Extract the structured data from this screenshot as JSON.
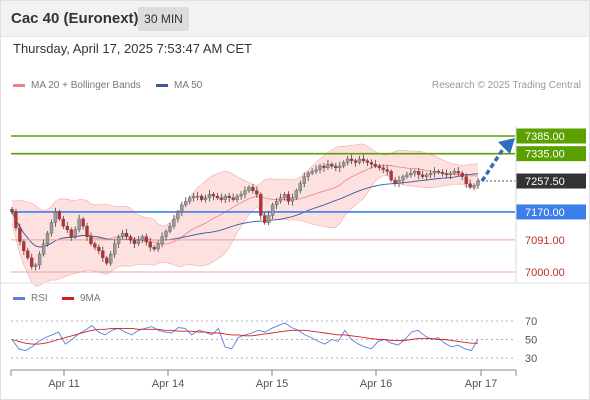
{
  "header": {
    "instrument": "Cac 40 (Euronext)",
    "interval": "30 MIN",
    "datetime": "Thursday, April 17, 2025 7:53:47 AM CET"
  },
  "legend": {
    "ma20_label": "MA 20 + Bollinger Bands",
    "ma50_label": "MA 50",
    "credit": "Research © 2025 Trading Central",
    "rsi_label": "RSI",
    "ma9_label": "9MA"
  },
  "colors": {
    "resistance_line": "#5aa000",
    "support_line": "#3d7eea",
    "pivot_line": "#f0a0a0",
    "current_price_label": "#333333",
    "ma20": "#f08080",
    "bollinger_fill": "#fde0e0",
    "ma50": "#3a5a9a",
    "candle_up": "#9a9a9a",
    "candle_down": "#c42b2b",
    "rsi": "#5b7fdb",
    "rsi_ma9": "#d02020",
    "arrow": "#2f6dbf"
  },
  "chart_data": [
    {
      "type": "candlestick",
      "title": "Cac 40 (Euronext)",
      "interval": "30 MIN",
      "ylim": [
        6980,
        7410
      ],
      "x_tick_labels": [
        "Apr 11",
        "Apr 14",
        "Apr 15",
        "Apr 16",
        "Apr 17"
      ],
      "series_close": [
        7170,
        7125,
        7086,
        7060,
        7040,
        7015,
        7020,
        7050,
        7080,
        7110,
        7140,
        7170,
        7150,
        7130,
        7120,
        7100,
        7120,
        7150,
        7130,
        7100,
        7080,
        7070,
        7060,
        7040,
        7025,
        7050,
        7080,
        7100,
        7110,
        7100,
        7090,
        7080,
        7090,
        7100,
        7085,
        7070,
        7065,
        7080,
        7100,
        7115,
        7130,
        7150,
        7170,
        7190,
        7200,
        7210,
        7215,
        7215,
        7205,
        7210,
        7220,
        7215,
        7210,
        7205,
        7215,
        7210,
        7205,
        7215,
        7220,
        7230,
        7240,
        7230,
        7220,
        7160,
        7140,
        7160,
        7190,
        7200,
        7210,
        7220,
        7200,
        7210,
        7230,
        7250,
        7270,
        7280,
        7285,
        7290,
        7300,
        7295,
        7305,
        7300,
        7295,
        7300,
        7310,
        7320,
        7315,
        7310,
        7320,
        7315,
        7310,
        7305,
        7300,
        7295,
        7290,
        7285,
        7260,
        7250,
        7260,
        7270,
        7275,
        7280,
        7285,
        7275,
        7270,
        7275,
        7280,
        7285,
        7282,
        7278,
        7275,
        7280,
        7285,
        7280,
        7270,
        7250,
        7240,
        7245,
        7257.5
      ],
      "levels": [
        {
          "label": "7385.00",
          "value": 7385,
          "kind": "resistance"
        },
        {
          "label": "7335.00",
          "value": 7335,
          "kind": "resistance"
        },
        {
          "label": "7257.50",
          "value": 7257.5,
          "kind": "current"
        },
        {
          "label": "7170.00",
          "value": 7170,
          "kind": "support"
        },
        {
          "label": "7091.00",
          "value": 7091,
          "kind": "pivot"
        },
        {
          "label": "7000.00",
          "value": 7000,
          "kind": "pivot"
        }
      ],
      "legend": [
        "MA 20 + Bollinger Bands",
        "MA 50"
      ]
    },
    {
      "type": "line",
      "title": "RSI",
      "ylim": [
        20,
        80
      ],
      "y_ticks": [
        70,
        50,
        30
      ],
      "series": [
        {
          "name": "RSI",
          "values": [
            50,
            40,
            38,
            42,
            48,
            52,
            55,
            58,
            45,
            50,
            56,
            60,
            65,
            58,
            55,
            60,
            62,
            58,
            55,
            60,
            62,
            64,
            60,
            58,
            57,
            63,
            62,
            55,
            60,
            58,
            55,
            62,
            42,
            40,
            52,
            55,
            57,
            60,
            58,
            62,
            65,
            68,
            63,
            60,
            55,
            52,
            48,
            45,
            50,
            48,
            60,
            50,
            45,
            42,
            40,
            48,
            50,
            46,
            44,
            50,
            58,
            60,
            54,
            50,
            52,
            46,
            42,
            44,
            40,
            38,
            50
          ]
        },
        {
          "name": "9MA",
          "values": [
            50,
            48,
            46,
            45,
            45,
            46,
            48,
            50,
            52,
            54,
            56,
            58,
            60,
            61,
            61,
            62,
            62,
            62,
            62,
            61,
            61,
            61,
            61,
            60,
            60,
            59,
            59,
            59,
            58,
            58,
            57,
            57,
            56,
            55,
            55,
            54,
            54,
            55,
            56,
            57,
            58,
            59,
            60,
            60,
            60,
            59,
            58,
            57,
            56,
            55,
            55,
            54,
            53,
            52,
            51,
            50,
            50,
            49,
            49,
            49,
            50,
            51,
            51,
            51,
            50,
            50,
            49,
            48,
            47,
            46,
            46
          ]
        }
      ],
      "legend": [
        "RSI",
        "9MA"
      ]
    }
  ]
}
